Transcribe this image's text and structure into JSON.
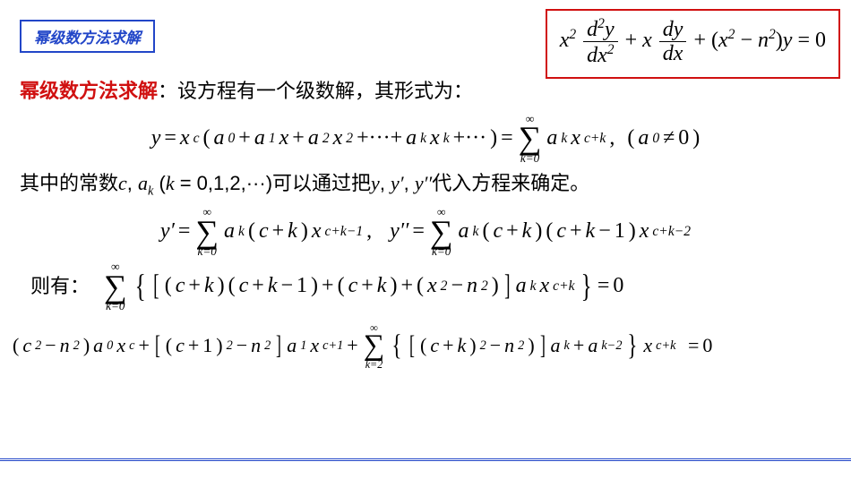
{
  "title": "幂级数方法求解",
  "main_equation": {
    "lhs_term1_coef": "x",
    "lhs_term1_exp": "2",
    "frac1_num": "d",
    "frac1_num_exp": "2",
    "frac1_num_var": "y",
    "frac1_den": "dx",
    "frac1_den_exp": "2",
    "plus1": "+",
    "term2_coef": "x",
    "frac2_num": "dy",
    "frac2_den": "dx",
    "plus2": "+",
    "paren_open": "(",
    "term3a": "x",
    "term3a_exp": "2",
    "minus": "−",
    "term3b": "n",
    "term3b_exp": "2",
    "paren_close": ")",
    "term3_var": "y",
    "eq": "=",
    "rhs": "0"
  },
  "line1_red": "幂级数方法求解",
  "line1_rest": "：设方程有一个级数解，其形式为：",
  "series_def": {
    "y": "y",
    "eq1": "=",
    "xc": "x",
    "c": "c",
    "open": "(",
    "a0": "a",
    "s0": "0",
    "p1": "+",
    "a1": "a",
    "s1": "1",
    "x1": "x",
    "p2": "+",
    "a2": "a",
    "s2": "2",
    "x2": "x",
    "e2": "2",
    "p3": "+···+",
    "ak": "a",
    "sk": "k",
    "xk": "x",
    "ek": "k",
    "p4": "+···",
    "close": ")",
    "eq2": "=",
    "sum_top": "∞",
    "sum_bot": "k=0",
    "aks": "a",
    "sks": "k",
    "xs": "x",
    "es": "c+k",
    "comma": ",",
    "cond_open": "(",
    "cond_a": "a",
    "cond_s": "0",
    "cond_ne": "≠",
    "cond_z": "0",
    "cond_close": ")"
  },
  "line3_pre": "其中的常数",
  "line3_c": "c",
  "line3_comma1": ", ",
  "line3_ak": "a",
  "line3_k": "k",
  "line3_paren": " (",
  "line3_keq": "k",
  "line3_eq": " = 0,1,2,",
  "line3_dots": "···",
  "line3_close": ")",
  "line3_mid": "可以通过把",
  "line3_y": "y",
  "line3_c2": ", ",
  "line3_yp": "y′",
  "line3_c3": ", ",
  "line3_ypp": "y′′",
  "line3_end": "代入方程来确定。",
  "derivs": {
    "yp": "y′",
    "eq1": "=",
    "sum_top": "∞",
    "sum_bot": "k=0",
    "ak1": "a",
    "sk1": "k",
    "ck1_o": "(",
    "ck1": "c",
    "p1": "+",
    "kk1": "k",
    "ck1_c": ")",
    "x1": "x",
    "e1": "c+k−1",
    "comma": ",",
    "ypp": "y′′",
    "eq2": "=",
    "ak2": "a",
    "sk2": "k",
    "f1o": "(",
    "f1c": "c",
    "f1p": "+",
    "f1k": "k",
    "f1cl": ")",
    "f2o": "(",
    "f2c": "c",
    "f2p": "+",
    "f2k": "k",
    "f2m": "−",
    "f2one": "1",
    "f2cl": ")",
    "x2": "x",
    "e2": "c+k−2"
  },
  "then_label": "则有：",
  "eq5": {
    "sum_top": "∞",
    "sum_bot": "k=0",
    "t1o": "(",
    "t1c": "c",
    "t1p": "+",
    "t1k": "k",
    "t1cl": ")",
    "t2o": "(",
    "t2c": "c",
    "t2p": "+",
    "t2k": "k",
    "t2m": "−",
    "t2one": "1",
    "t2cl": ")",
    "p1": "+",
    "t3o": "(",
    "t3c": "c",
    "t3p": "+",
    "t3k": "k",
    "t3cl": ")",
    "p2": "+",
    "t4o": "(",
    "t4x": "x",
    "t4e": "2",
    "t4m": "−",
    "t4n": "n",
    "t4ne": "2",
    "t4cl": ")",
    "ak": "a",
    "sk": "k",
    "x": "x",
    "xe": "c+k",
    "eq": "=",
    "z": "0"
  },
  "eq6": {
    "t1o": "(",
    "t1c": "c",
    "t1e": "2",
    "t1m": "−",
    "t1n": "n",
    "t1ne": "2",
    "t1cl": ")",
    "a0": "a",
    "s0": "0",
    "x0": "x",
    "e0": "c",
    "p1": "+",
    "t2o": "(",
    "t2c": "c",
    "t2p": "+",
    "t2one": "1",
    "t2cl": ")",
    "t2e": "2",
    "t2m": "−",
    "t2n": "n",
    "t2ne": "2",
    "a1": "a",
    "s1": "1",
    "x1": "x",
    "e1": "c+1",
    "p2": "+",
    "sum_top": "∞",
    "sum_bot": "k=2",
    "t3o": "(",
    "t3c": "c",
    "t3p": "+",
    "t3k": "k",
    "t3cl": ")",
    "t3e": "2",
    "t3m": "−",
    "t3n": "n",
    "t3ne": "2",
    "t3clsq": ")",
    "ak": "a",
    "sk": "k",
    "p3": "+",
    "ak2": "a",
    "sk2": "k−2",
    "x": "x",
    "xe": "c+k",
    "eq": "=",
    "z": "0"
  },
  "colors": {
    "blue": "#2246c8",
    "red": "#d01010",
    "text": "#000000",
    "bg": "#ffffff"
  }
}
